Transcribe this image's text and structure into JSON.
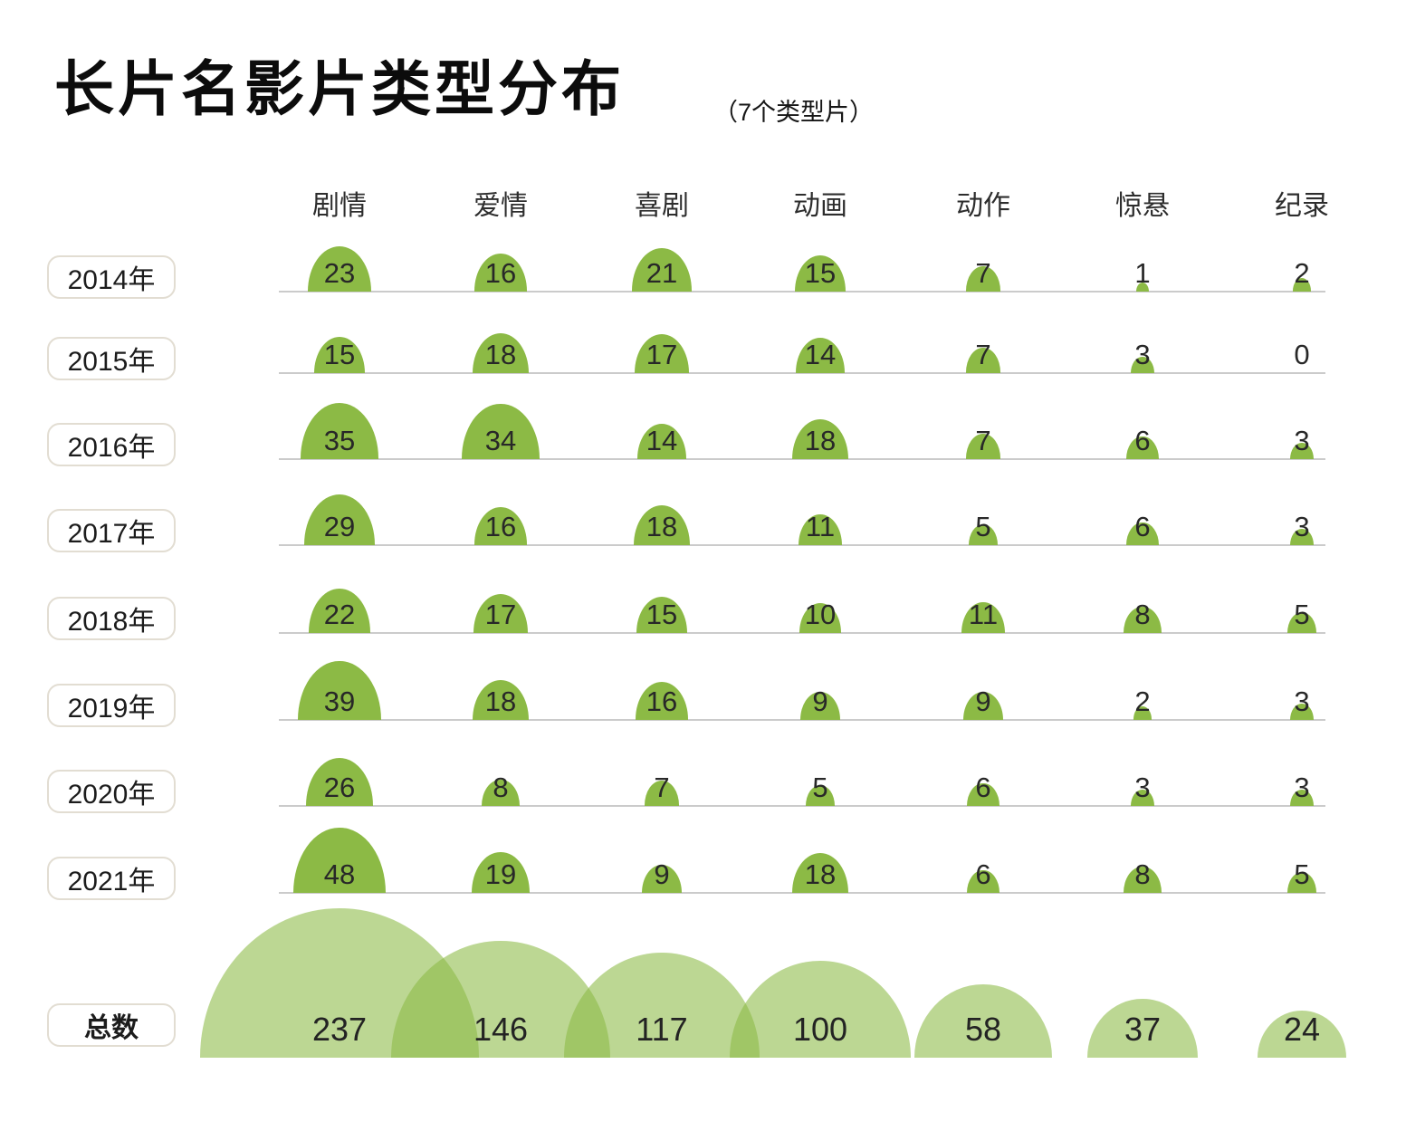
{
  "title": "长片名影片类型分布",
  "subtitle": "（7个类型片）",
  "chart_data": {
    "type": "bar",
    "variant": "proportional-semicircle-matrix",
    "title": "长片名影片类型分布",
    "subtitle": "（7个类型片）",
    "categories": [
      "剧情",
      "爱情",
      "喜剧",
      "动画",
      "动作",
      "惊悬",
      "纪录"
    ],
    "rows": [
      {
        "label": "2014年",
        "values": [
          23,
          16,
          21,
          15,
          7,
          1,
          2
        ]
      },
      {
        "label": "2015年",
        "values": [
          15,
          18,
          17,
          14,
          7,
          3,
          0
        ]
      },
      {
        "label": "2016年",
        "values": [
          35,
          34,
          14,
          18,
          7,
          6,
          3
        ]
      },
      {
        "label": "2017年",
        "values": [
          29,
          16,
          18,
          11,
          5,
          6,
          3
        ]
      },
      {
        "label": "2018年",
        "values": [
          22,
          17,
          15,
          10,
          11,
          8,
          5
        ]
      },
      {
        "label": "2019年",
        "values": [
          39,
          18,
          16,
          9,
          9,
          2,
          3
        ]
      },
      {
        "label": "2020年",
        "values": [
          26,
          8,
          7,
          5,
          6,
          3,
          3
        ]
      },
      {
        "label": "2021年",
        "values": [
          48,
          19,
          9,
          18,
          6,
          8,
          5
        ]
      }
    ],
    "total": {
      "label": "总数",
      "values": [
        237,
        146,
        117,
        100,
        58,
        37,
        24
      ]
    },
    "colors": {
      "dome_green": "#8cba45",
      "total_dome_green_alpha": "rgba(140,186,69,0.58)",
      "baseline_gray": "#cbcbcb",
      "pill_border": "#e2ddd2",
      "text_dark": "#232323"
    },
    "encoding": "dome size proportional to sqrt(value); totals row drawn in translucent green with overlaps",
    "legend_position": "none",
    "grid": "horizontal baselines per year row only"
  }
}
